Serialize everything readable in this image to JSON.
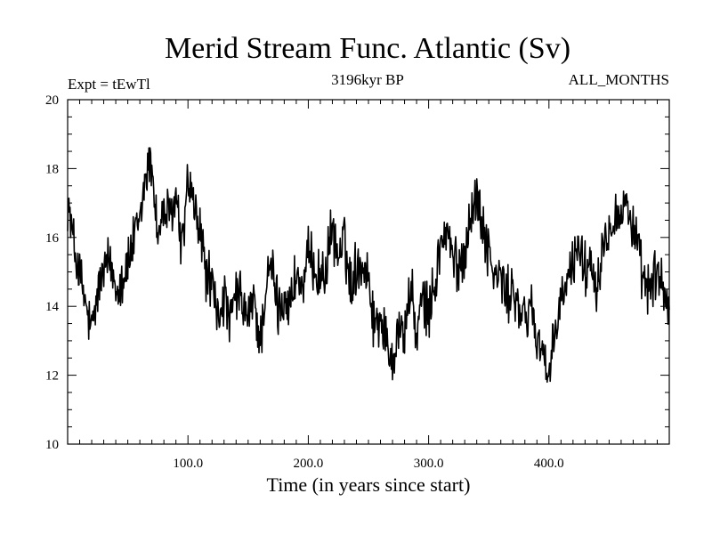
{
  "chart_data": {
    "type": "line",
    "title": "Merid Stream Func. Atlantic (Sv)",
    "subtitle_left": "Expt = tEwTl",
    "subtitle_center": "3196kyr BP",
    "subtitle_right": "ALL_MONTHS",
    "xlabel": "Time (in years since start)",
    "ylabel": "",
    "xlim": [
      0,
      500
    ],
    "ylim": [
      10,
      20
    ],
    "x_ticks": [
      "100.0",
      "200.0",
      "300.0",
      "400.0"
    ],
    "y_ticks": [
      "10",
      "12",
      "14",
      "16",
      "18",
      "20"
    ],
    "grid": false,
    "series": [
      {
        "name": "Merid Stream Func. Atlantic",
        "x": [
          0,
          5,
          10,
          15,
          20,
          25,
          30,
          35,
          40,
          45,
          50,
          55,
          60,
          65,
          70,
          75,
          80,
          85,
          90,
          95,
          100,
          105,
          110,
          115,
          120,
          125,
          130,
          135,
          140,
          145,
          150,
          155,
          160,
          165,
          170,
          175,
          180,
          185,
          190,
          195,
          200,
          205,
          210,
          215,
          220,
          225,
          230,
          235,
          240,
          245,
          250,
          255,
          260,
          265,
          270,
          275,
          280,
          285,
          290,
          295,
          300,
          305,
          310,
          315,
          320,
          325,
          330,
          335,
          340,
          345,
          350,
          355,
          360,
          365,
          370,
          375,
          380,
          385,
          390,
          395,
          400,
          405,
          410,
          415,
          420,
          425,
          430,
          435,
          440,
          445,
          450,
          455,
          460,
          465,
          470,
          475,
          480,
          485,
          490,
          495,
          500
        ],
        "values": [
          17.1,
          15.8,
          14.9,
          14.0,
          13.2,
          14.4,
          15.0,
          15.3,
          14.6,
          14.8,
          15.2,
          15.9,
          16.4,
          17.9,
          18.2,
          16.0,
          16.8,
          16.5,
          17.2,
          15.6,
          17.7,
          16.8,
          16.2,
          15.0,
          14.6,
          13.6,
          14.3,
          13.4,
          14.4,
          14.1,
          13.6,
          14.2,
          12.9,
          14.6,
          15.1,
          13.9,
          14.3,
          14.0,
          15.0,
          14.4,
          15.4,
          15.2,
          14.8,
          15.1,
          16.3,
          15.4,
          15.9,
          14.6,
          15.2,
          15.3,
          14.9,
          13.4,
          13.8,
          12.9,
          12.5,
          13.4,
          13.2,
          14.6,
          13.1,
          14.2,
          13.8,
          14.6,
          15.8,
          16.2,
          15.4,
          15.1,
          15.6,
          16.8,
          17.1,
          16.4,
          15.6,
          14.8,
          14.9,
          14.2,
          14.6,
          13.8,
          13.6,
          14.1,
          13.0,
          12.9,
          11.6,
          13.2,
          14.2,
          14.6,
          15.3,
          15.9,
          15.0,
          15.4,
          14.6,
          15.9,
          16.3,
          16.8,
          16.6,
          17.1,
          16.2,
          15.4,
          14.4,
          14.7,
          14.9,
          14.6,
          13.8
        ],
        "color": "#000000"
      }
    ]
  }
}
